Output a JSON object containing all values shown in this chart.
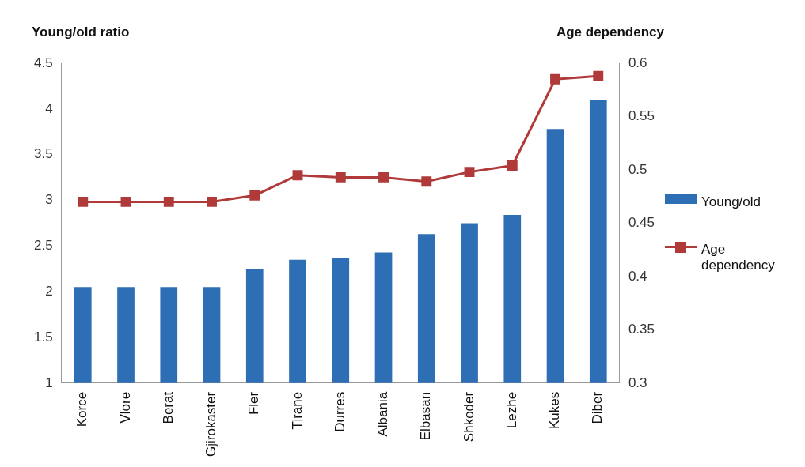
{
  "chart_data": {
    "type": "bar",
    "ylabel": "Young/old ratio",
    "y2label": "Age dependency",
    "categories": [
      "Korce",
      "Vlore",
      "Berat",
      "Gjirokaster",
      "Fler",
      "Tirane",
      "Durres",
      "Albania",
      "Elbasan",
      "Shkoder",
      "Lezhe",
      "Kukes",
      "Diber"
    ],
    "series": [
      {
        "name": "Young/old",
        "color": "#2e6eb5",
        "values": [
          2.05,
          2.05,
          2.05,
          2.05,
          2.25,
          2.35,
          2.37,
          2.43,
          2.63,
          2.75,
          2.84,
          3.78,
          4.1
        ]
      },
      {
        "name": "Age dependency",
        "type": "line",
        "axis": "y2",
        "color": "#b03a3a",
        "values": [
          0.47,
          0.47,
          0.47,
          0.47,
          0.476,
          0.495,
          0.493,
          0.493,
          0.489,
          0.498,
          0.504,
          0.585,
          0.588
        ]
      }
    ],
    "ylim": [
      1,
      4.5
    ],
    "yticks": [
      1,
      1.5,
      2,
      2.5,
      3,
      3.5,
      4,
      4.5
    ],
    "y2lim": [
      0.3,
      0.6
    ],
    "y2ticks": [
      0.3,
      0.35,
      0.4,
      0.45,
      0.5,
      0.55,
      0.6
    ],
    "grid": false,
    "legend": "right",
    "marker": "square",
    "line_style": "solid"
  }
}
